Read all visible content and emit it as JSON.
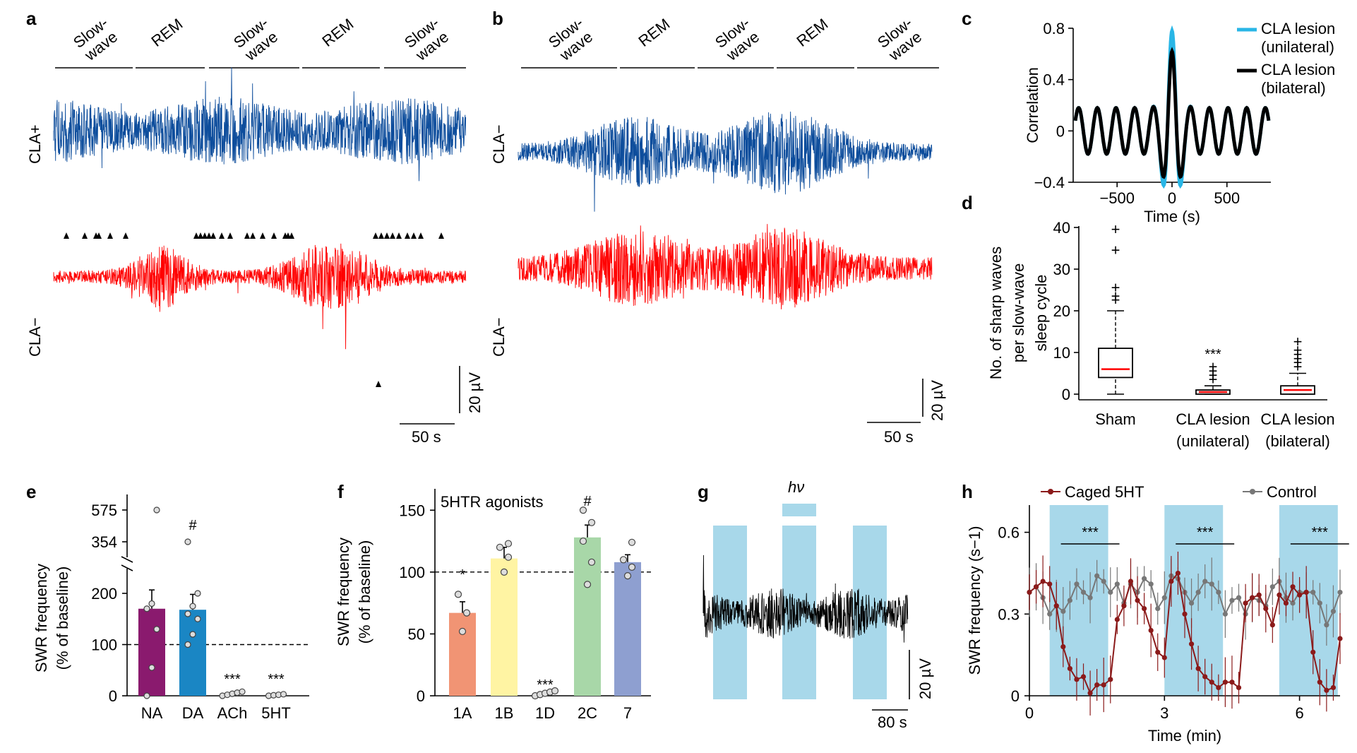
{
  "panel_labels": [
    "a",
    "b",
    "c",
    "d",
    "e",
    "f",
    "g",
    "h"
  ],
  "panel_a": {
    "stages": [
      "Slow-\nwave",
      "REM",
      "Slow-\nwave",
      "REM",
      "Slow-\nwave"
    ],
    "trace_top_label": "CLA+",
    "trace_bottom_label": "CLA−",
    "scale_v": "20 µV",
    "scale_t": "50 s",
    "colors": {
      "top": "#0d4d9c",
      "bottom": "#ff0000"
    }
  },
  "panel_b": {
    "stages": [
      "Slow-\nwave",
      "REM",
      "Slow-\nwave",
      "REM",
      "Slow-\nwave"
    ],
    "trace_top_label": "CLA−",
    "trace_bottom_label": "CLA−",
    "scale_v": "20 µV",
    "scale_t": "50 s"
  },
  "panel_g": {
    "stim_label": "hν",
    "scale_v": "20 µV",
    "scale_t": "80 s",
    "stim_color": "#a8d8ea"
  },
  "chart_data": [
    {
      "id": "c",
      "type": "line",
      "xlabel": "Time (s)",
      "ylabel": "Correlation",
      "xlim": [
        -900,
        900
      ],
      "ylim": [
        -0.4,
        0.8
      ],
      "xticks": [
        -500,
        0,
        500
      ],
      "yticks": [
        -0.4,
        0,
        0.4,
        0.8
      ],
      "series": [
        {
          "name": "CLA lesion\n(unilateral)",
          "color": "#29b6e6",
          "peak": 0.78,
          "period": 170
        },
        {
          "name": "CLA lesion\n(bilateral)",
          "color": "#000000",
          "peak": 0.62,
          "period": 170
        }
      ]
    },
    {
      "id": "d",
      "type": "box",
      "ylabel": "No. of sharp waves\nper slow-wave\nsleep cycle",
      "ylim": [
        0,
        40
      ],
      "yticks": [
        0,
        10,
        20,
        30,
        40
      ],
      "categories": [
        "Sham",
        "CLA lesion\n(unilateral)",
        "CLA lesion\n(bilateral)"
      ],
      "boxes": [
        {
          "q1": 4,
          "median": 6,
          "q3": 11,
          "whisker_low": 0,
          "whisker_high": 20,
          "outliers": [
            22,
            23,
            25,
            34,
            39
          ]
        },
        {
          "q1": 0,
          "median": 0.5,
          "q3": 1,
          "whisker_low": 0,
          "whisker_high": 2,
          "outliers": [
            3,
            4,
            5,
            6
          ]
        },
        {
          "q1": 0,
          "median": 1,
          "q3": 2,
          "whisker_low": 0,
          "whisker_high": 5,
          "outliers": [
            6,
            7,
            8,
            9,
            10,
            12
          ]
        }
      ],
      "annotations": [
        "",
        "***",
        ""
      ]
    },
    {
      "id": "e",
      "type": "bar",
      "ylabel": "SWR frequency\n(% of baseline)",
      "yticks": [
        0,
        100,
        200,
        354,
        575
      ],
      "categories": [
        "NA",
        "DA",
        "ACh",
        "5HT"
      ],
      "values": [
        170,
        168,
        3,
        1
      ],
      "errors": [
        45,
        30,
        1,
        1
      ],
      "colors": [
        "#8a1a6e",
        "#1a86c4",
        "#cccccc",
        "#cccccc"
      ],
      "points": [
        [
          0,
          55,
          130,
          170,
          180,
          575
        ],
        [
          100,
          120,
          150,
          160,
          175,
          200,
          354
        ],
        [
          0,
          2,
          4,
          6,
          8
        ],
        [
          0,
          1,
          2,
          3
        ]
      ],
      "annotations": [
        "",
        "#",
        "***",
        "***"
      ],
      "baseline": 100
    },
    {
      "id": "f",
      "type": "bar",
      "title": "5HTR agonists",
      "ylabel": "SWR frequency\n(% of baseline)",
      "ylim": [
        0,
        170
      ],
      "yticks": [
        0,
        50,
        100,
        150
      ],
      "categories": [
        "1A",
        "1B",
        "1D",
        "2C",
        "7"
      ],
      "values": [
        67,
        111,
        2,
        128,
        108
      ],
      "errors": [
        9,
        9,
        1,
        10,
        6
      ],
      "colors": [
        "#f19474",
        "#fff4a3",
        "#cccccc",
        "#a8d7a8",
        "#8e9fd0"
      ],
      "points": [
        [
          52,
          67,
          82
        ],
        [
          100,
          112,
          120,
          123
        ],
        [
          0,
          1,
          2,
          3,
          4
        ],
        [
          90,
          108,
          125,
          140,
          150
        ],
        [
          97,
          104,
          110,
          124
        ]
      ],
      "annotations": [
        "*",
        "",
        "***",
        "#",
        ""
      ],
      "baseline": 100
    },
    {
      "id": "h",
      "type": "line",
      "xlabel": "Time (min)",
      "ylabel": "SWR frequency (s−1)",
      "xlim": [
        0,
        6.9
      ],
      "ylim": [
        0,
        0.7
      ],
      "xticks": [
        0,
        3,
        6
      ],
      "yticks": [
        0,
        0.3,
        0.6
      ],
      "legend": [
        "Caged 5HT",
        "Control"
      ],
      "stim_windows": [
        [
          0.45,
          1.75
        ],
        [
          3.0,
          4.3
        ],
        [
          5.55,
          6.85
        ]
      ],
      "significance": [
        "***",
        "***",
        "***"
      ],
      "series": [
        {
          "name": "Caged 5HT",
          "color": "#8b1a1a",
          "dt": 0.15,
          "values": [
            0.38,
            0.4,
            0.42,
            0.41,
            0.33,
            0.18,
            0.1,
            0.06,
            0.07,
            0.01,
            0.04,
            0.04,
            0.06,
            0.28,
            0.33,
            0.42,
            0.35,
            0.32,
            0.24,
            0.16,
            0.14,
            0.42,
            0.45,
            0.3,
            0.19,
            0.1,
            0.07,
            0.05,
            0.03,
            0.05,
            0.05,
            0.03,
            0.34,
            0.36,
            0.37,
            0.32,
            0.26,
            0.37,
            0.34,
            0.4,
            0.37,
            0.38,
            0.16,
            0.05,
            0.02,
            0.03,
            0.21
          ]
        },
        {
          "name": "Control",
          "color": "#777777",
          "dt": 0.15,
          "values": [
            0.38,
            0.4,
            0.36,
            0.3,
            0.33,
            0.31,
            0.35,
            0.41,
            0.38,
            0.36,
            0.44,
            0.42,
            0.38,
            0.41,
            0.34,
            0.41,
            0.38,
            0.43,
            0.41,
            0.32,
            0.36,
            0.44,
            0.43,
            0.38,
            0.34,
            0.38,
            0.42,
            0.41,
            0.38,
            0.3,
            0.35,
            0.36,
            0.3,
            0.36,
            0.35,
            0.33,
            0.4,
            0.42,
            0.36,
            0.34,
            0.38,
            0.38,
            0.38,
            0.34,
            0.26,
            0.31,
            0.38
          ]
        }
      ]
    }
  ]
}
